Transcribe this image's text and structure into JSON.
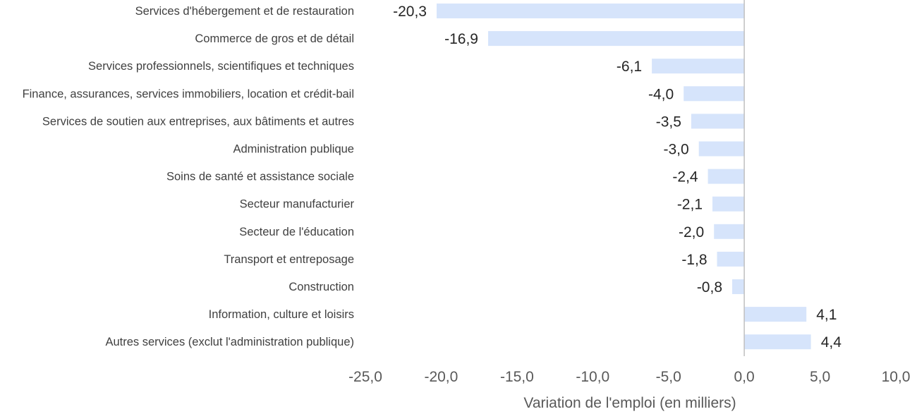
{
  "chart_data": {
    "type": "bar",
    "orientation": "horizontal",
    "categories": [
      "Services d'hébergement et de restauration",
      "Commerce de gros et de détail",
      "Services professionnels, scientifiques et techniques",
      "Finance, assurances, services immobiliers, location et crédit-bail",
      "Services de soutien aux entreprises, aux bâtiments et autres",
      "Administration publique",
      "Soins de santé et assistance sociale",
      "Secteur manufacturier",
      "Secteur de l'éducation",
      "Transport et entreposage",
      "Construction",
      "Information, culture et loisirs",
      "Autres services (exclut l'administration publique)"
    ],
    "values": [
      -20.3,
      -16.9,
      -6.1,
      -4.0,
      -3.5,
      -3.0,
      -2.4,
      -2.1,
      -2.0,
      -1.8,
      -0.8,
      4.1,
      4.4
    ],
    "value_labels": [
      "-20,3",
      "-16,9",
      "-6,1",
      "-4,0",
      "-3,5",
      "-3,0",
      "-2,4",
      "-2,1",
      "-2,0",
      "-1,8",
      "-0,8",
      "4,1",
      "4,4"
    ],
    "xticks": [
      -25,
      -20,
      -15,
      -10,
      -5,
      0,
      5,
      10
    ],
    "xtick_labels": [
      "-25,0",
      "-20,0",
      "-15,0",
      "-10,0",
      "-5,0",
      "0,0",
      "5,0",
      "10,0"
    ],
    "xlim": [
      -25,
      10
    ],
    "xlabel": "Variation de l'emploi (en milliers)",
    "ylabel": "",
    "title": "",
    "grid": false,
    "bar_color": "#d6e4fb",
    "zero_line_color": "#bfbfbf"
  }
}
